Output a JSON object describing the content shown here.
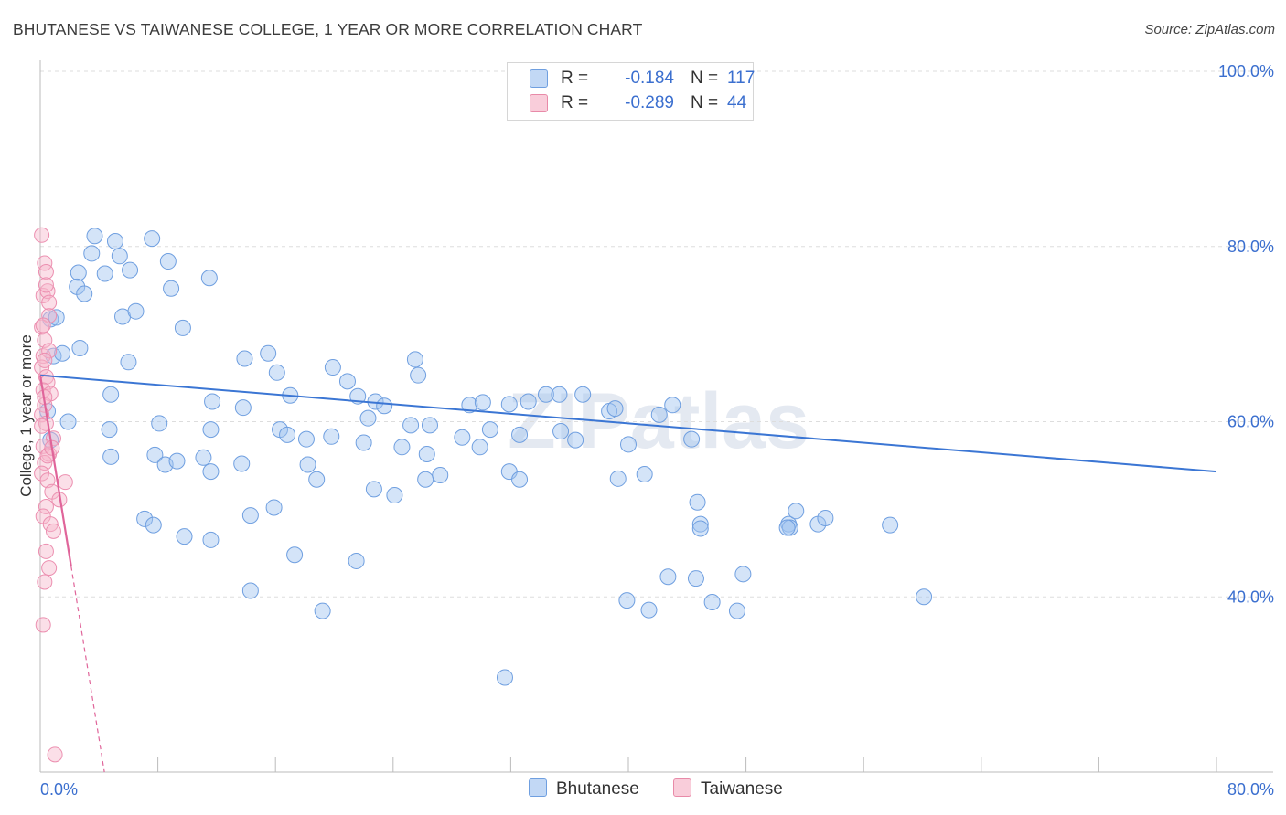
{
  "title": "BHUTANESE VS TAIWANESE COLLEGE, 1 YEAR OR MORE CORRELATION CHART",
  "source": "Source: ZipAtlas.com",
  "watermark": "ZIPatlas",
  "legend": {
    "rows": [
      {
        "r_label": "R =",
        "r_value": "-0.184",
        "n_label": "N =",
        "n_value": "117",
        "color": "#a8c8f0",
        "border": "#6f9fe0"
      },
      {
        "r_label": "R =",
        "r_value": "-0.289",
        "n_label": "N =",
        "n_value": "44",
        "color": "#f7b8cc",
        "border": "#e88aa8"
      }
    ]
  },
  "bottom_legend": {
    "series1": "Bhutanese",
    "series2": "Taiwanese"
  },
  "colors": {
    "blue": "#3b76d4",
    "blue_fill": "rgba(160,195,240,0.45)",
    "blue_stroke": "#6f9fe0",
    "pink": "#e0659a",
    "pink_fill": "rgba(247,184,204,0.45)",
    "pink_stroke": "#ec8fb0",
    "axis_text": "#3b6fcf",
    "grid": "#dddddd"
  },
  "chart_data": {
    "type": "scatter",
    "title": "BHUTANESE VS TAIWANESE COLLEGE, 1 YEAR OR MORE CORRELATION CHART",
    "xlabel": "",
    "ylabel": "College, 1 year or more",
    "xlim": [
      0,
      80
    ],
    "ylim": [
      20,
      100
    ],
    "x_ticks": [
      "0.0%",
      "80.0%"
    ],
    "y_ticks": [
      "40.0%",
      "60.0%",
      "80.0%",
      "100.0%"
    ],
    "y_tick_values": [
      40,
      60,
      80,
      100
    ],
    "series": [
      {
        "name": "Bhutanese",
        "R": -0.184,
        "N": 117,
        "trend": {
          "x": [
            0,
            80
          ],
          "y": [
            65.3,
            54.3
          ]
        },
        "points": [
          [
            3.7,
            81.2
          ],
          [
            5.1,
            80.6
          ],
          [
            7.6,
            80.9
          ],
          [
            3.5,
            79.2
          ],
          [
            5.4,
            78.9
          ],
          [
            2.6,
            77.0
          ],
          [
            4.4,
            76.9
          ],
          [
            6.1,
            77.3
          ],
          [
            8.7,
            78.3
          ],
          [
            11.5,
            76.4
          ],
          [
            2.5,
            75.4
          ],
          [
            3.0,
            74.6
          ],
          [
            8.9,
            75.2
          ],
          [
            0.7,
            71.7
          ],
          [
            1.1,
            71.9
          ],
          [
            5.6,
            72.0
          ],
          [
            6.5,
            72.6
          ],
          [
            9.7,
            70.7
          ],
          [
            2.7,
            68.4
          ],
          [
            0.9,
            67.5
          ],
          [
            1.5,
            67.8
          ],
          [
            6.0,
            66.8
          ],
          [
            13.9,
            67.2
          ],
          [
            15.5,
            67.8
          ],
          [
            16.1,
            65.6
          ],
          [
            19.9,
            66.2
          ],
          [
            25.5,
            67.1
          ],
          [
            25.7,
            65.3
          ],
          [
            20.9,
            64.6
          ],
          [
            21.6,
            62.9
          ],
          [
            22.8,
            62.3
          ],
          [
            23.4,
            61.8
          ],
          [
            29.2,
            61.9
          ],
          [
            30.1,
            62.2
          ],
          [
            31.9,
            62.0
          ],
          [
            33.2,
            62.3
          ],
          [
            34.4,
            63.1
          ],
          [
            35.3,
            63.1
          ],
          [
            36.9,
            63.1
          ],
          [
            38.7,
            61.2
          ],
          [
            39.1,
            61.5
          ],
          [
            42.1,
            60.8
          ],
          [
            43.0,
            61.9
          ],
          [
            4.8,
            63.1
          ],
          [
            11.7,
            62.3
          ],
          [
            13.8,
            61.6
          ],
          [
            17.0,
            63.0
          ],
          [
            1.9,
            60.0
          ],
          [
            4.7,
            59.1
          ],
          [
            8.1,
            59.8
          ],
          [
            11.6,
            59.1
          ],
          [
            16.3,
            59.1
          ],
          [
            22.3,
            60.4
          ],
          [
            25.2,
            59.6
          ],
          [
            26.5,
            59.6
          ],
          [
            28.7,
            58.2
          ],
          [
            30.6,
            59.1
          ],
          [
            32.6,
            58.5
          ],
          [
            35.4,
            58.9
          ],
          [
            40.0,
            57.4
          ],
          [
            16.8,
            58.5
          ],
          [
            18.1,
            58.0
          ],
          [
            19.8,
            58.3
          ],
          [
            22.0,
            57.6
          ],
          [
            24.6,
            57.1
          ],
          [
            26.3,
            56.3
          ],
          [
            29.9,
            57.1
          ],
          [
            36.4,
            57.9
          ],
          [
            4.8,
            56.0
          ],
          [
            7.8,
            56.2
          ],
          [
            8.5,
            55.1
          ],
          [
            9.3,
            55.5
          ],
          [
            11.1,
            55.9
          ],
          [
            11.6,
            54.3
          ],
          [
            13.7,
            55.2
          ],
          [
            18.2,
            55.1
          ],
          [
            18.8,
            53.4
          ],
          [
            22.7,
            52.3
          ],
          [
            24.1,
            51.6
          ],
          [
            26.2,
            53.4
          ],
          [
            27.2,
            53.9
          ],
          [
            31.9,
            54.3
          ],
          [
            32.6,
            53.4
          ],
          [
            15.9,
            50.2
          ],
          [
            7.1,
            48.9
          ],
          [
            7.7,
            48.2
          ],
          [
            9.8,
            46.9
          ],
          [
            11.6,
            46.5
          ],
          [
            17.3,
            44.8
          ],
          [
            14.3,
            49.3
          ],
          [
            21.5,
            44.1
          ],
          [
            19.2,
            38.4
          ],
          [
            31.6,
            30.8
          ],
          [
            41.1,
            54.0
          ],
          [
            39.3,
            53.5
          ],
          [
            44.7,
            50.8
          ],
          [
            44.3,
            58.0
          ],
          [
            44.9,
            48.3
          ],
          [
            50.9,
            48.3
          ],
          [
            14.3,
            40.7
          ],
          [
            41.4,
            38.5
          ],
          [
            47.4,
            38.4
          ],
          [
            52.9,
            48.3
          ],
          [
            47.8,
            42.6
          ],
          [
            44.9,
            47.8
          ],
          [
            51.4,
            49.8
          ],
          [
            45.7,
            39.4
          ],
          [
            44.6,
            42.1
          ],
          [
            39.9,
            39.6
          ],
          [
            60.1,
            40.0
          ],
          [
            42.7,
            42.3
          ],
          [
            0.7,
            57.9
          ],
          [
            0.5,
            61.2
          ],
          [
            53.4,
            49.0
          ],
          [
            51.0,
            47.9
          ],
          [
            57.8,
            48.2
          ],
          [
            50.8,
            47.9
          ]
        ]
      },
      {
        "name": "Taiwanese",
        "R": -0.289,
        "N": 44,
        "trend": {
          "x": [
            0,
            2.1
          ],
          "y": [
            65.3,
            43.5
          ]
        },
        "points": [
          [
            0.1,
            81.3
          ],
          [
            0.3,
            78.1
          ],
          [
            0.4,
            77.1
          ],
          [
            0.2,
            74.4
          ],
          [
            0.5,
            74.9
          ],
          [
            0.6,
            72.1
          ],
          [
            0.1,
            70.8
          ],
          [
            0.3,
            69.3
          ],
          [
            0.2,
            67.5
          ],
          [
            0.6,
            68.1
          ],
          [
            0.1,
            66.2
          ],
          [
            0.4,
            65.1
          ],
          [
            0.5,
            64.5
          ],
          [
            0.2,
            63.6
          ],
          [
            0.7,
            63.2
          ],
          [
            0.3,
            61.9
          ],
          [
            0.1,
            60.8
          ],
          [
            0.4,
            59.8
          ],
          [
            0.9,
            58.1
          ],
          [
            0.2,
            57.2
          ],
          [
            0.6,
            56.3
          ],
          [
            0.3,
            55.3
          ],
          [
            0.1,
            54.1
          ],
          [
            0.5,
            53.3
          ],
          [
            1.7,
            53.1
          ],
          [
            0.8,
            52.0
          ],
          [
            1.3,
            51.1
          ],
          [
            0.4,
            50.3
          ],
          [
            0.2,
            49.2
          ],
          [
            0.7,
            48.3
          ],
          [
            0.9,
            47.5
          ],
          [
            0.4,
            45.2
          ],
          [
            0.6,
            43.3
          ],
          [
            0.3,
            41.7
          ],
          [
            0.2,
            36.8
          ],
          [
            1.0,
            22.0
          ],
          [
            0.5,
            56.1
          ],
          [
            0.1,
            59.5
          ],
          [
            0.3,
            62.8
          ],
          [
            0.8,
            57.0
          ],
          [
            0.2,
            71.0
          ],
          [
            0.4,
            75.6
          ],
          [
            0.6,
            73.6
          ],
          [
            0.3,
            67.0
          ]
        ]
      }
    ]
  }
}
